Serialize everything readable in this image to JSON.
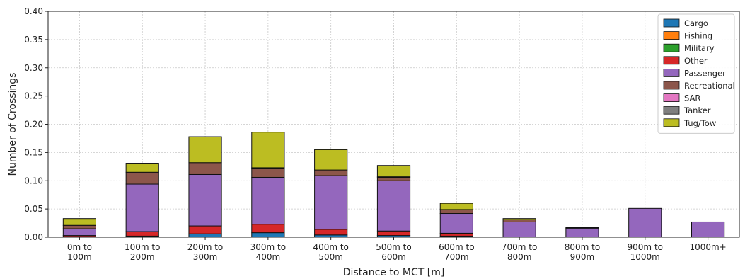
{
  "chart_data": {
    "type": "bar",
    "stacked": true,
    "xlabel": "Distance to MCT [m]",
    "ylabel": "Number of Crossings",
    "ylim": [
      0,
      0.4
    ],
    "yticks": [
      "0.00",
      "0.05",
      "0.10",
      "0.15",
      "0.20",
      "0.25",
      "0.30",
      "0.35",
      "0.40"
    ],
    "grid": true,
    "legend_position": "top-right",
    "categories": [
      [
        "0m to",
        "100m"
      ],
      [
        "100m to",
        "200m"
      ],
      [
        "200m to",
        "300m"
      ],
      [
        "300m to",
        "400m"
      ],
      [
        "400m to",
        "500m"
      ],
      [
        "500m to",
        "600m"
      ],
      [
        "600m to",
        "700m"
      ],
      [
        "700m to",
        "800m"
      ],
      [
        "800m to",
        "900m"
      ],
      [
        "900m to",
        "1000m"
      ],
      [
        "1000m+"
      ]
    ],
    "series": [
      {
        "name": "Cargo",
        "color": "#1f77b4",
        "values": [
          0.001,
          0.002,
          0.006,
          0.008,
          0.004,
          0.003,
          0.002,
          0.0,
          0.0,
          0.0,
          0.0
        ]
      },
      {
        "name": "Fishing",
        "color": "#ff7f0e",
        "values": [
          0.0,
          0.0,
          0.0,
          0.0,
          0.0,
          0.0,
          0.0,
          0.0,
          0.0,
          0.0,
          0.0
        ]
      },
      {
        "name": "Military",
        "color": "#2ca02c",
        "values": [
          0.0,
          0.0,
          0.0,
          0.0,
          0.0,
          0.0,
          0.0,
          0.0,
          0.0,
          0.0,
          0.0
        ]
      },
      {
        "name": "Other",
        "color": "#d62728",
        "values": [
          0.002,
          0.008,
          0.014,
          0.015,
          0.01,
          0.008,
          0.005,
          0.0,
          0.0,
          0.0,
          0.0
        ]
      },
      {
        "name": "Passenger",
        "color": "#9467bd",
        "values": [
          0.012,
          0.084,
          0.091,
          0.083,
          0.095,
          0.089,
          0.035,
          0.027,
          0.016,
          0.051,
          0.027
        ]
      },
      {
        "name": "Recreational",
        "color": "#8c564b",
        "values": [
          0.006,
          0.021,
          0.021,
          0.016,
          0.01,
          0.006,
          0.007,
          0.004,
          0.001,
          0.0,
          0.0
        ]
      },
      {
        "name": "SAR",
        "color": "#e377c2",
        "values": [
          0.0,
          0.0,
          0.0,
          0.0,
          0.0,
          0.001,
          0.0,
          0.0,
          0.0,
          0.0,
          0.0
        ]
      },
      {
        "name": "Tanker",
        "color": "#7f7f7f",
        "values": [
          0.0,
          0.0,
          0.0,
          0.001,
          0.0,
          0.0,
          0.0,
          0.0,
          0.0,
          0.0,
          0.0
        ]
      },
      {
        "name": "Tug/Tow",
        "color": "#bcbd22",
        "values": [
          0.012,
          0.016,
          0.046,
          0.063,
          0.036,
          0.02,
          0.011,
          0.002,
          0.0,
          0.0,
          0.0
        ]
      }
    ]
  }
}
